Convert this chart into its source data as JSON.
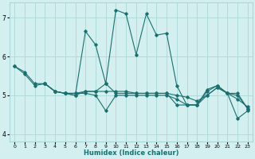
{
  "xlabel": "Humidex (Indice chaleur)",
  "background_color": "#d4efef",
  "grid_color": "#aad8d8",
  "line_color": "#1a7070",
  "xlim": [
    -0.5,
    23.5
  ],
  "ylim": [
    3.8,
    7.4
  ],
  "xticks": [
    0,
    1,
    2,
    3,
    4,
    5,
    6,
    7,
    8,
    9,
    10,
    11,
    12,
    13,
    14,
    15,
    16,
    17,
    18,
    19,
    20,
    21,
    22,
    23
  ],
  "yticks": [
    4,
    5,
    6,
    7
  ],
  "lines": [
    {
      "x": [
        0,
        1,
        2,
        3,
        4,
        5,
        6,
        7,
        8,
        9,
        10,
        11,
        12,
        13,
        14,
        15,
        16,
        17,
        18,
        19,
        20,
        21,
        22,
        23
      ],
      "y": [
        5.75,
        5.6,
        5.3,
        5.3,
        5.1,
        5.05,
        5.0,
        6.65,
        6.3,
        5.3,
        7.2,
        7.1,
        6.05,
        7.1,
        6.55,
        6.6,
        5.25,
        4.75,
        4.75,
        5.1,
        5.25,
        5.05,
        4.4,
        4.6
      ]
    },
    {
      "x": [
        0,
        1,
        2,
        3,
        4,
        5,
        6,
        7,
        8,
        9,
        10,
        11,
        12,
        13,
        14,
        15,
        16,
        17,
        18,
        19,
        20,
        21,
        22,
        23
      ],
      "y": [
        5.75,
        5.55,
        5.25,
        5.3,
        5.1,
        5.05,
        5.05,
        5.05,
        5.0,
        4.6,
        5.0,
        5.0,
        5.0,
        5.0,
        5.0,
        5.0,
        4.9,
        4.75,
        4.75,
        5.15,
        5.25,
        5.05,
        4.9,
        4.7
      ]
    },
    {
      "x": [
        3,
        4,
        5,
        6,
        7,
        8,
        9,
        10,
        11,
        12,
        13,
        14,
        15,
        16,
        17,
        18,
        19,
        20,
        21,
        22,
        23
      ],
      "y": [
        5.3,
        5.1,
        5.05,
        5.0,
        5.1,
        5.1,
        5.1,
        5.1,
        5.1,
        5.05,
        5.05,
        5.05,
        5.05,
        5.0,
        4.95,
        4.85,
        5.0,
        5.2,
        5.05,
        5.05,
        4.65
      ]
    },
    {
      "x": [
        3,
        4,
        5,
        6,
        7,
        8,
        9,
        10,
        11,
        12,
        13,
        14,
        15,
        16,
        17,
        18,
        19,
        20,
        21,
        22,
        23
      ],
      "y": [
        5.3,
        5.1,
        5.05,
        5.05,
        5.1,
        5.1,
        5.3,
        5.05,
        5.05,
        5.05,
        5.05,
        5.05,
        5.05,
        4.75,
        4.75,
        4.75,
        5.0,
        5.2,
        5.05,
        5.0,
        4.65
      ]
    }
  ]
}
